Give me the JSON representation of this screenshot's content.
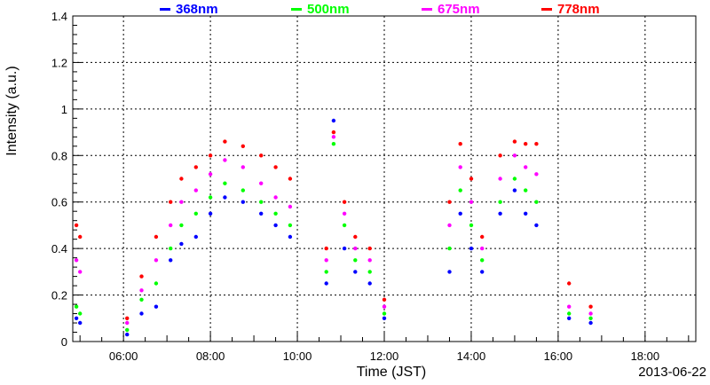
{
  "chart_data": {
    "type": "scatter",
    "title": "",
    "xlabel": "Time (JST)",
    "ylabel": "Intensity (a.u.)",
    "date": "2013-06-22",
    "xlim": [
      "04:50",
      "19:10"
    ],
    "ylim": [
      0,
      1.4
    ],
    "x_ticks": [
      "06:00",
      "08:00",
      "10:00",
      "12:00",
      "14:00",
      "16:00",
      "18:00"
    ],
    "y_ticks": [
      "0",
      "0.2",
      "0.4",
      "0.6",
      "0.8",
      "1",
      "1.2",
      "1.4"
    ],
    "grid": true,
    "legend_position": "top",
    "series": [
      {
        "name": "368nm",
        "color": "#0000ff",
        "values": [
          [
            "04:55",
            0.1
          ],
          [
            "05:00",
            0.08
          ],
          [
            "06:05",
            0.03
          ],
          [
            "06:25",
            0.12
          ],
          [
            "06:45",
            0.15
          ],
          [
            "07:05",
            0.35
          ],
          [
            "07:20",
            0.42
          ],
          [
            "07:40",
            0.45
          ],
          [
            "08:00",
            0.55
          ],
          [
            "08:20",
            0.62
          ],
          [
            "08:45",
            0.6
          ],
          [
            "09:10",
            0.55
          ],
          [
            "09:30",
            0.5
          ],
          [
            "09:50",
            0.45
          ],
          [
            "10:40",
            0.25
          ],
          [
            "10:50",
            0.95
          ],
          [
            "11:05",
            0.4
          ],
          [
            "11:20",
            0.3
          ],
          [
            "11:40",
            0.25
          ],
          [
            "12:00",
            0.1
          ],
          [
            "13:30",
            0.3
          ],
          [
            "13:45",
            0.55
          ],
          [
            "14:00",
            0.4
          ],
          [
            "14:15",
            0.3
          ],
          [
            "14:40",
            0.55
          ],
          [
            "15:00",
            0.65
          ],
          [
            "15:15",
            0.55
          ],
          [
            "15:30",
            0.5
          ],
          [
            "16:15",
            0.1
          ],
          [
            "16:45",
            0.08
          ]
        ]
      },
      {
        "name": "500nm",
        "color": "#00ff00",
        "values": [
          [
            "04:55",
            0.15
          ],
          [
            "05:00",
            0.12
          ],
          [
            "06:05",
            0.05
          ],
          [
            "06:25",
            0.18
          ],
          [
            "06:45",
            0.25
          ],
          [
            "07:05",
            0.4
          ],
          [
            "07:20",
            0.5
          ],
          [
            "07:40",
            0.55
          ],
          [
            "08:00",
            0.62
          ],
          [
            "08:20",
            0.68
          ],
          [
            "08:45",
            0.65
          ],
          [
            "09:10",
            0.6
          ],
          [
            "09:30",
            0.55
          ],
          [
            "09:50",
            0.5
          ],
          [
            "10:40",
            0.3
          ],
          [
            "10:50",
            0.85
          ],
          [
            "11:05",
            0.5
          ],
          [
            "11:20",
            0.35
          ],
          [
            "11:40",
            0.3
          ],
          [
            "12:00",
            0.12
          ],
          [
            "13:30",
            0.4
          ],
          [
            "13:45",
            0.65
          ],
          [
            "14:00",
            0.5
          ],
          [
            "14:15",
            0.35
          ],
          [
            "14:40",
            0.6
          ],
          [
            "15:00",
            0.7
          ],
          [
            "15:15",
            0.65
          ],
          [
            "15:30",
            0.6
          ],
          [
            "16:15",
            0.12
          ],
          [
            "16:45",
            0.1
          ]
        ]
      },
      {
        "name": "675nm",
        "color": "#ff00ff",
        "values": [
          [
            "04:55",
            0.35
          ],
          [
            "05:00",
            0.3
          ],
          [
            "06:05",
            0.08
          ],
          [
            "06:25",
            0.22
          ],
          [
            "06:45",
            0.35
          ],
          [
            "07:05",
            0.5
          ],
          [
            "07:20",
            0.6
          ],
          [
            "07:40",
            0.65
          ],
          [
            "08:00",
            0.72
          ],
          [
            "08:20",
            0.78
          ],
          [
            "08:45",
            0.75
          ],
          [
            "09:10",
            0.68
          ],
          [
            "09:30",
            0.62
          ],
          [
            "09:50",
            0.58
          ],
          [
            "10:40",
            0.35
          ],
          [
            "10:50",
            0.88
          ],
          [
            "11:05",
            0.55
          ],
          [
            "11:20",
            0.4
          ],
          [
            "11:40",
            0.35
          ],
          [
            "12:00",
            0.15
          ],
          [
            "13:30",
            0.5
          ],
          [
            "13:45",
            0.75
          ],
          [
            "14:00",
            0.6
          ],
          [
            "14:15",
            0.4
          ],
          [
            "14:40",
            0.7
          ],
          [
            "15:00",
            0.8
          ],
          [
            "15:15",
            0.75
          ],
          [
            "15:30",
            0.72
          ],
          [
            "16:15",
            0.15
          ],
          [
            "16:45",
            0.12
          ]
        ]
      },
      {
        "name": "778nm",
        "color": "#ff0000",
        "values": [
          [
            "04:55",
            0.5
          ],
          [
            "05:00",
            0.45
          ],
          [
            "06:05",
            0.1
          ],
          [
            "06:25",
            0.28
          ],
          [
            "06:45",
            0.45
          ],
          [
            "07:05",
            0.6
          ],
          [
            "07:20",
            0.7
          ],
          [
            "07:40",
            0.75
          ],
          [
            "08:00",
            0.8
          ],
          [
            "08:20",
            0.86
          ],
          [
            "08:45",
            0.84
          ],
          [
            "09:10",
            0.8
          ],
          [
            "09:30",
            0.75
          ],
          [
            "09:50",
            0.7
          ],
          [
            "10:40",
            0.4
          ],
          [
            "10:50",
            0.9
          ],
          [
            "11:05",
            0.6
          ],
          [
            "11:20",
            0.45
          ],
          [
            "11:40",
            0.4
          ],
          [
            "12:00",
            0.18
          ],
          [
            "13:30",
            0.6
          ],
          [
            "13:45",
            0.85
          ],
          [
            "14:00",
            0.7
          ],
          [
            "14:15",
            0.45
          ],
          [
            "14:40",
            0.8
          ],
          [
            "15:00",
            0.86
          ],
          [
            "15:15",
            0.85
          ],
          [
            "15:30",
            0.85
          ],
          [
            "16:15",
            0.25
          ],
          [
            "16:45",
            0.15
          ]
        ]
      }
    ]
  }
}
